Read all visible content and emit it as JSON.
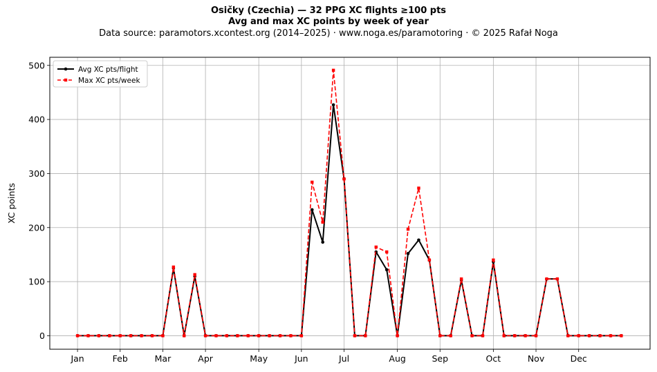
{
  "header": {
    "title_line1": "Osičky (Czechia)  —  32 PPG XC flights ≥100 pts",
    "title_line2": "Avg and max XC points by week of year",
    "subtitle": "Data source: paramotors.xcontest.org (2014–2025)  ·  www.noga.es/paramotoring  ·  © 2025 Rafał Noga"
  },
  "chart_data": {
    "type": "line",
    "ylabel": "XC points",
    "xlabel": "",
    "x_unit": "week of year",
    "xlim": [
      -1.6,
      54.7
    ],
    "ylim": [
      -25,
      515
    ],
    "grid": true,
    "legend_position": "top-left",
    "x": [
      1,
      2,
      3,
      4,
      5,
      6,
      7,
      8,
      9,
      10,
      11,
      12,
      13,
      14,
      15,
      16,
      17,
      18,
      19,
      20,
      21,
      22,
      23,
      24,
      25,
      26,
      27,
      28,
      29,
      30,
      31,
      32,
      33,
      34,
      35,
      36,
      37,
      38,
      39,
      40,
      41,
      42,
      43,
      44,
      45,
      46,
      47,
      48,
      49,
      50,
      51,
      52
    ],
    "month_ticks": [
      {
        "label": "Jan",
        "week": 1
      },
      {
        "label": "Feb",
        "week": 5
      },
      {
        "label": "Mar",
        "week": 9
      },
      {
        "label": "Apr",
        "week": 13
      },
      {
        "label": "May",
        "week": 18
      },
      {
        "label": "Jun",
        "week": 22
      },
      {
        "label": "Jul",
        "week": 26
      },
      {
        "label": "Aug",
        "week": 31
      },
      {
        "label": "Sep",
        "week": 35
      },
      {
        "label": "Oct",
        "week": 40
      },
      {
        "label": "Nov",
        "week": 44
      },
      {
        "label": "Dec",
        "week": 48
      }
    ],
    "y_ticks": [
      0,
      100,
      200,
      300,
      400,
      500
    ],
    "series": [
      {
        "name": "Avg XC pts/flight",
        "color": "#000000",
        "style": "solid",
        "marker": "circle",
        "values": [
          0,
          0,
          0,
          0,
          0,
          0,
          0,
          0,
          0,
          125,
          0,
          110,
          0,
          0,
          0,
          0,
          0,
          0,
          0,
          0,
          0,
          0,
          233,
          173,
          427,
          290,
          0,
          0,
          155,
          122,
          0,
          152,
          177,
          140,
          0,
          0,
          103,
          0,
          0,
          137,
          0,
          0,
          0,
          0,
          105,
          105,
          0,
          0,
          0,
          0,
          0,
          0
        ]
      },
      {
        "name": "Max XC pts/week",
        "color": "#ff0000",
        "style": "dashed",
        "marker": "square",
        "values": [
          0,
          0,
          0,
          0,
          0,
          0,
          0,
          0,
          0,
          127,
          0,
          113,
          0,
          0,
          0,
          0,
          0,
          0,
          0,
          0,
          0,
          0,
          284,
          210,
          491,
          290,
          0,
          0,
          164,
          155,
          0,
          197,
          273,
          140,
          0,
          0,
          105,
          0,
          0,
          140,
          0,
          0,
          0,
          0,
          105,
          105,
          0,
          0,
          0,
          0,
          0,
          0
        ]
      }
    ]
  }
}
